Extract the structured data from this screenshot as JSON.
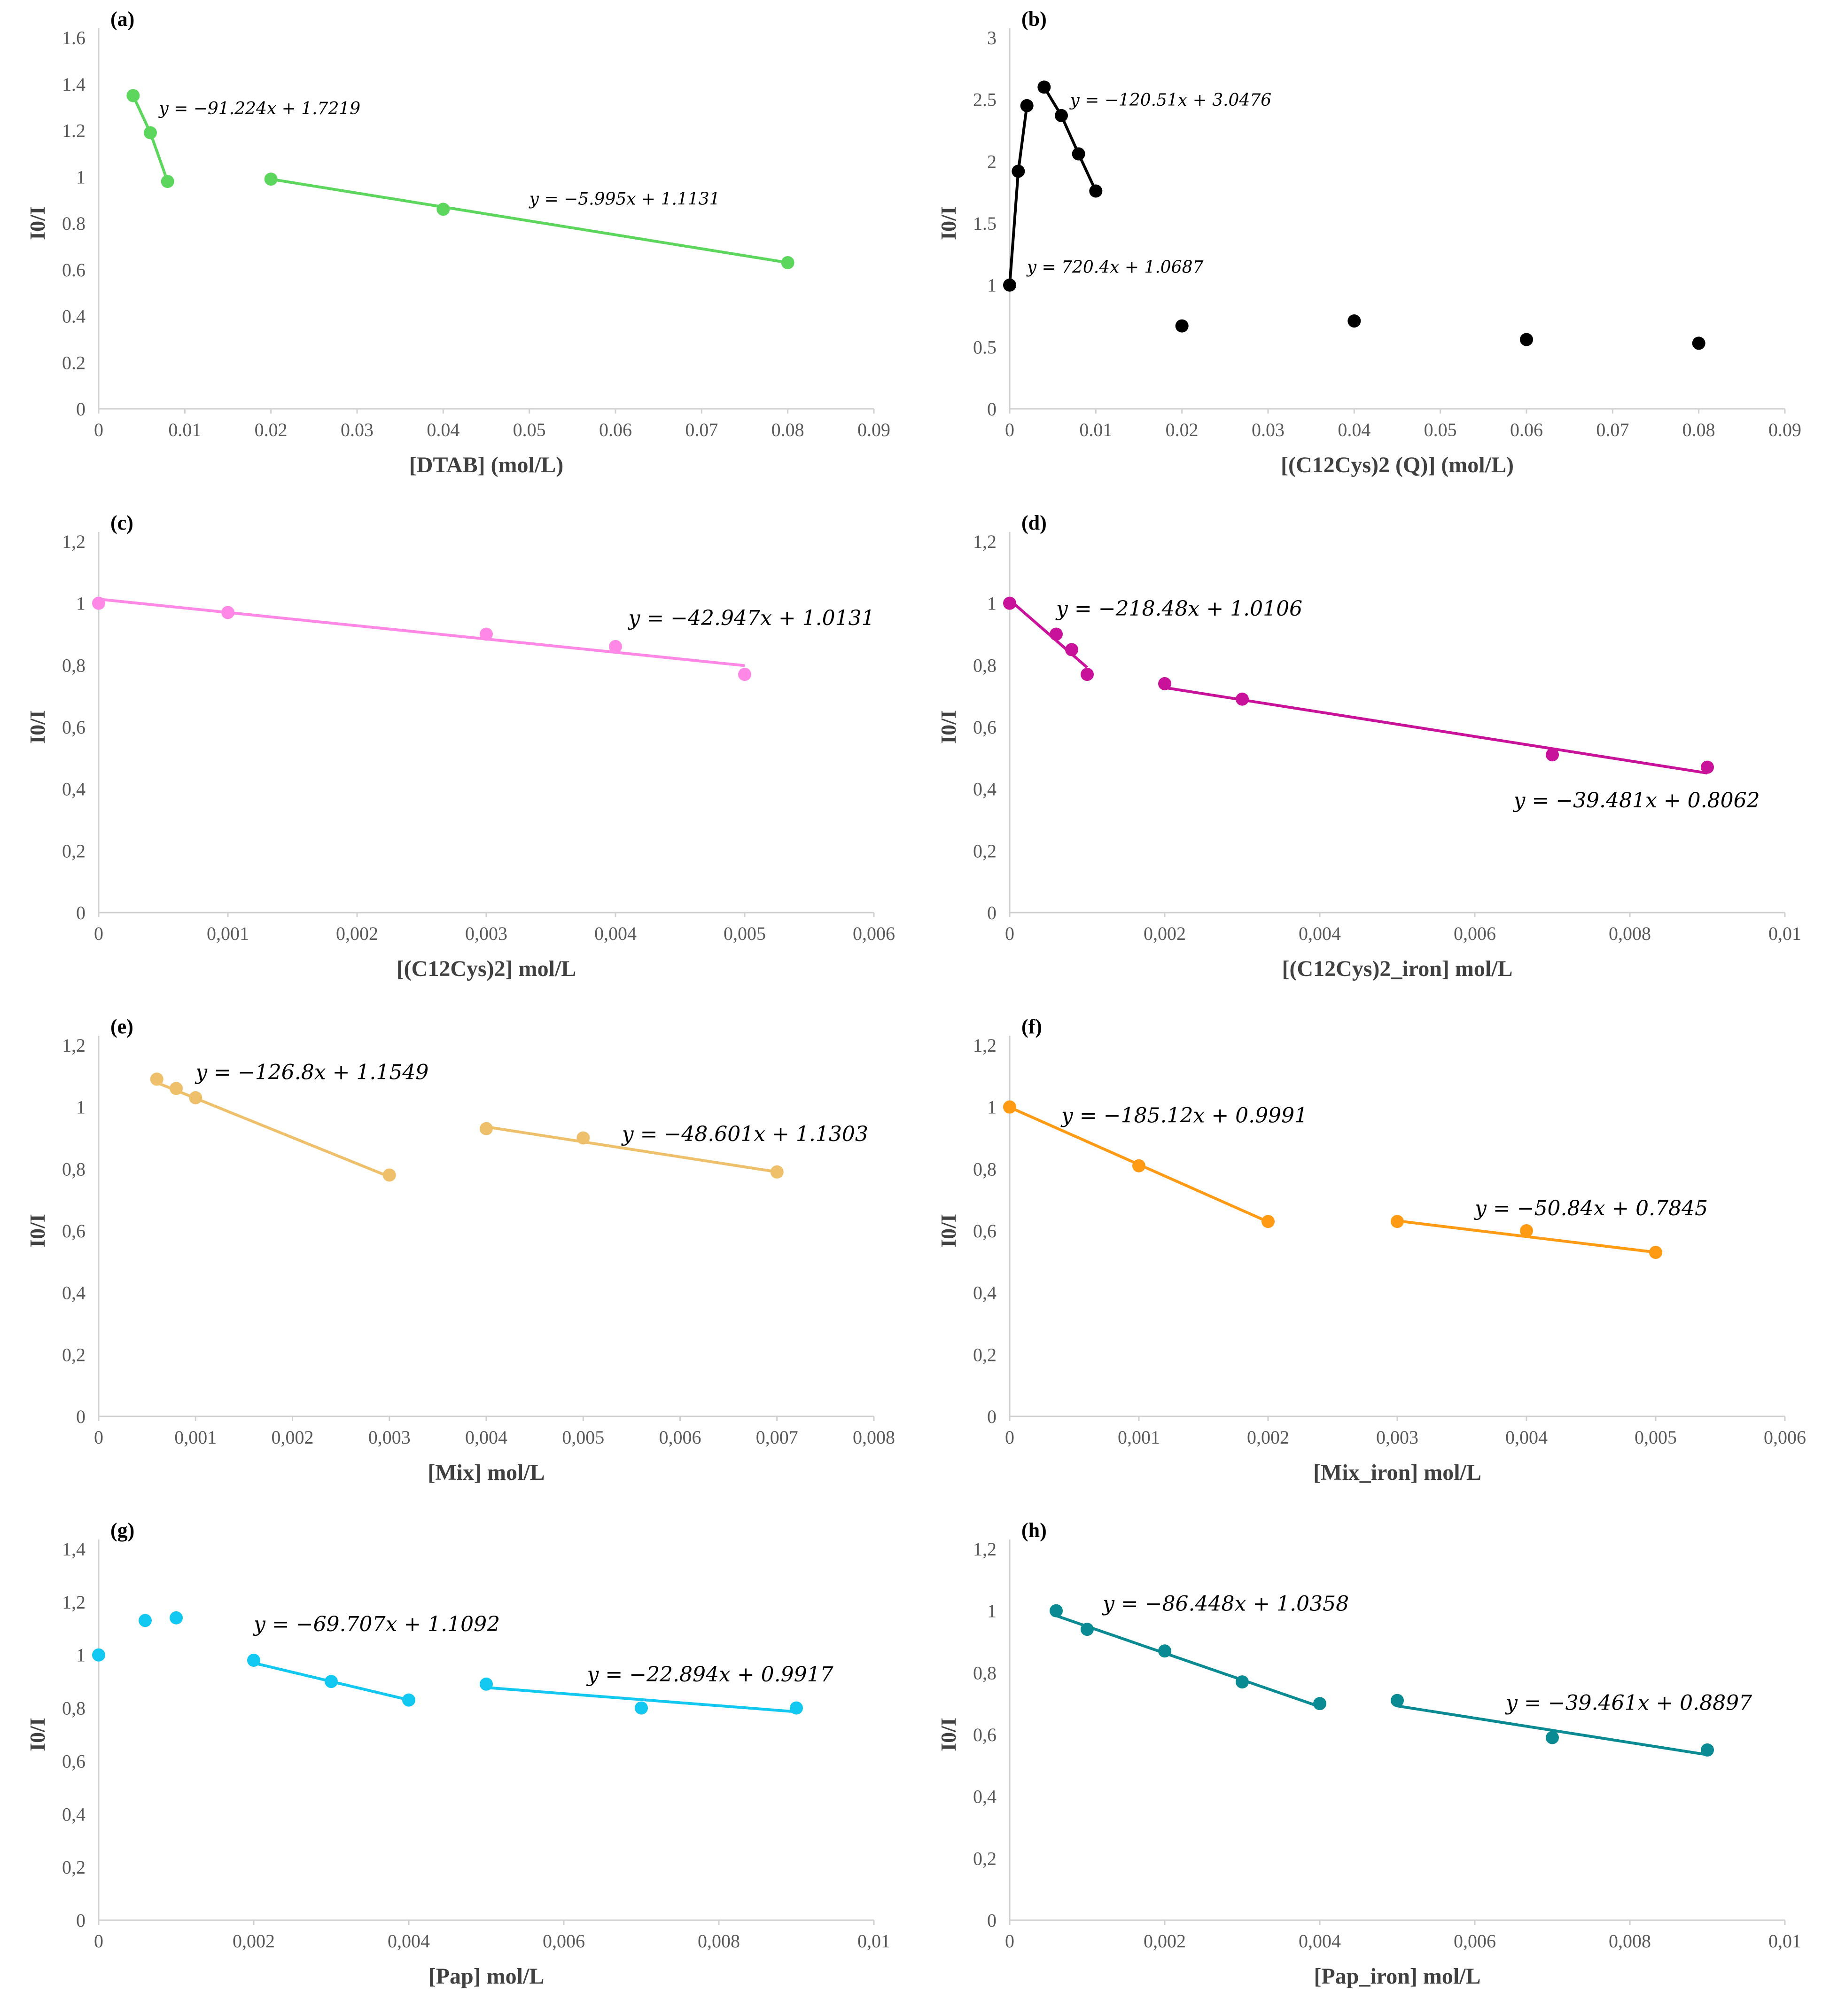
{
  "chart_data": [
    {
      "label": "(a)",
      "type": "scatter",
      "xlabel": "[DTAB] (mol/L)",
      "ylabel": "I0/I",
      "xlim": [
        0,
        0.09
      ],
      "xticks": [
        "0",
        "0.01",
        "0.02",
        "0.03",
        "0.04",
        "0.05",
        "0.06",
        "0.07",
        "0.08",
        "0.09"
      ],
      "ylim": [
        0,
        1.6
      ],
      "yticks": [
        "0",
        "0.2",
        "0.4",
        "0.6",
        "0.8",
        "1",
        "1.2",
        "1.4",
        "1.6"
      ],
      "color": "#5cd65c",
      "points": [
        [
          0.004,
          1.35
        ],
        [
          0.006,
          1.19
        ],
        [
          0.008,
          0.98
        ],
        [
          0.02,
          0.99
        ],
        [
          0.04,
          0.86
        ],
        [
          0.08,
          0.63
        ]
      ],
      "lines": [
        [
          [
            0.004,
            1.35
          ],
          [
            0.006,
            1.19
          ],
          [
            0.008,
            0.98
          ]
        ],
        [
          [
            0.02,
            0.99
          ],
          [
            0.08,
            0.63
          ]
        ]
      ],
      "equations": [
        {
          "text": "y = −91.224x + 1.7219",
          "at": [
            0.007,
            1.27
          ]
        },
        {
          "text": "y = −5.995x + 1.1131",
          "at": [
            0.05,
            0.88
          ]
        }
      ]
    },
    {
      "label": "(b)",
      "type": "scatter",
      "xlabel": "[(C12Cys)2 (Q)] (mol/L)",
      "ylabel": "I0/I",
      "xlim": [
        0,
        0.09
      ],
      "xticks": [
        "0",
        "0.01",
        "0.02",
        "0.03",
        "0.04",
        "0.05",
        "0.06",
        "0.07",
        "0.08",
        "0.09"
      ],
      "ylim": [
        0,
        3
      ],
      "yticks": [
        "0",
        "0.5",
        "1",
        "1.5",
        "2",
        "2.5",
        "3"
      ],
      "color": "#000000",
      "points": [
        [
          0,
          1
        ],
        [
          0.001,
          1.92
        ],
        [
          0.002,
          2.45
        ],
        [
          0.004,
          2.6
        ],
        [
          0.006,
          2.37
        ],
        [
          0.008,
          2.06
        ],
        [
          0.01,
          1.76
        ],
        [
          0.02,
          0.67
        ],
        [
          0.04,
          0.71
        ],
        [
          0.06,
          0.56
        ],
        [
          0.08,
          0.53
        ]
      ],
      "lines": [
        [
          [
            0,
            1
          ],
          [
            0.001,
            1.92
          ],
          [
            0.002,
            2.45
          ]
        ],
        [
          [
            0.004,
            2.6
          ],
          [
            0.006,
            2.37
          ],
          [
            0.008,
            2.06
          ],
          [
            0.01,
            1.76
          ]
        ]
      ],
      "equations": [
        {
          "text": "y = −120.51x + 3.0476",
          "at": [
            0.007,
            2.45
          ]
        },
        {
          "text": "y = 720.4x + 1.0687",
          "at": [
            0.002,
            1.1
          ]
        }
      ]
    },
    {
      "label": "(c)",
      "type": "scatter",
      "xlabel": "[(C12Cys)2] mol/L",
      "ylabel": "I0/I",
      "xlim": [
        0,
        0.006
      ],
      "xticks": [
        "0",
        "0,001",
        "0,002",
        "0,003",
        "0,004",
        "0,005",
        "0,006"
      ],
      "ylim": [
        0,
        1.2
      ],
      "yticks": [
        "0",
        "0,2",
        "0,4",
        "0,6",
        "0,8",
        "1",
        "1,2"
      ],
      "color": "#ff88e6",
      "points": [
        [
          0,
          1
        ],
        [
          0.001,
          0.97
        ],
        [
          0.003,
          0.9
        ],
        [
          0.004,
          0.86
        ],
        [
          0.005,
          0.77
        ]
      ],
      "lines": [
        [
          [
            0,
            1.0131
          ],
          [
            0.005,
            0.7984
          ]
        ]
      ],
      "equations": [
        {
          "text": "y = −42.947x + 1.0131",
          "at": [
            0.0041,
            0.93
          ]
        }
      ]
    },
    {
      "label": "(d)",
      "type": "scatter",
      "xlabel": "[(C12Cys)2_iron] mol/L",
      "ylabel": "I0/I",
      "xlim": [
        0,
        0.01
      ],
      "xticks": [
        "0",
        "0,002",
        "0,004",
        "0,006",
        "0,008",
        "0,01"
      ],
      "ylim": [
        0,
        1.2
      ],
      "yticks": [
        "0",
        "0,2",
        "0,4",
        "0,6",
        "0,8",
        "1",
        "1,2"
      ],
      "color": "#c8129a",
      "points": [
        [
          0,
          1
        ],
        [
          0.0006,
          0.9
        ],
        [
          0.0008,
          0.85
        ],
        [
          0.001,
          0.77
        ],
        [
          0.002,
          0.74
        ],
        [
          0.003,
          0.69
        ],
        [
          0.007,
          0.51
        ],
        [
          0.009,
          0.47
        ]
      ],
      "lines": [
        [
          [
            0,
            1.0106
          ],
          [
            0.001,
            0.7921
          ]
        ],
        [
          [
            0.002,
            0.7272
          ],
          [
            0.009,
            0.4509
          ]
        ]
      ],
      "equations": [
        {
          "text": "y = −218.48x + 1.0106",
          "at": [
            0.0006,
            0.96
          ]
        },
        {
          "text": "y = −39.481x + 0.8062",
          "at": [
            0.0065,
            0.34
          ]
        }
      ]
    },
    {
      "label": "(e)",
      "type": "scatter",
      "xlabel": "[Mix] mol/L",
      "ylabel": "I0/I",
      "xlim": [
        0,
        0.008
      ],
      "xticks": [
        "0",
        "0,001",
        "0,002",
        "0,003",
        "0,004",
        "0,005",
        "0,006",
        "0,007",
        "0,008"
      ],
      "ylim": [
        0,
        1.2
      ],
      "yticks": [
        "0",
        "0,2",
        "0,4",
        "0,6",
        "0,8",
        "1",
        "1,2"
      ],
      "color": "#efc06b",
      "points": [
        [
          0.0006,
          1.09
        ],
        [
          0.0008,
          1.06
        ],
        [
          0.001,
          1.03
        ],
        [
          0.003,
          0.78
        ],
        [
          0.004,
          0.93
        ],
        [
          0.005,
          0.9
        ],
        [
          0.007,
          0.79
        ]
      ],
      "lines": [
        [
          [
            0.0006,
            1.0788
          ],
          [
            0.003,
            0.7745
          ]
        ],
        [
          [
            0.004,
            0.9359
          ],
          [
            0.007,
            0.7901
          ]
        ]
      ],
      "equations": [
        {
          "text": "y = −126.8x + 1.1549",
          "at": [
            0.001,
            1.09
          ]
        },
        {
          "text": "y = −48.601x + 1.1303",
          "at": [
            0.0054,
            0.89
          ]
        }
      ]
    },
    {
      "label": "(f)",
      "type": "scatter",
      "xlabel": "[Mix_iron] mol/L",
      "ylabel": "I0/I",
      "xlim": [
        0,
        0.006
      ],
      "xticks": [
        "0",
        "0,001",
        "0,002",
        "0,003",
        "0,004",
        "0,005",
        "0,006"
      ],
      "ylim": [
        0,
        1.2
      ],
      "yticks": [
        "0",
        "0,2",
        "0,4",
        "0,6",
        "0,8",
        "1",
        "1,2"
      ],
      "color": "#ff9a14",
      "points": [
        [
          0,
          1
        ],
        [
          0.001,
          0.81
        ],
        [
          0.002,
          0.63
        ],
        [
          0.003,
          0.63
        ],
        [
          0.004,
          0.6
        ],
        [
          0.005,
          0.53
        ]
      ],
      "lines": [
        [
          [
            0,
            0.9991
          ],
          [
            0.002,
            0.6289
          ]
        ],
        [
          [
            0.003,
            0.632
          ],
          [
            0.005,
            0.5303
          ]
        ]
      ],
      "equations": [
        {
          "text": "y = −185.12x + 0.9991",
          "at": [
            0.0004,
            0.95
          ]
        },
        {
          "text": "y = −50.84x + 0.7845",
          "at": [
            0.0036,
            0.65
          ]
        }
      ]
    },
    {
      "label": "(g)",
      "type": "scatter",
      "xlabel": "[Pap] mol/L",
      "ylabel": "I0/I",
      "xlim": [
        0,
        0.01
      ],
      "xticks": [
        "0",
        "0,002",
        "0,004",
        "0,006",
        "0,008",
        "0,01"
      ],
      "ylim": [
        0,
        1.4
      ],
      "yticks": [
        "0",
        "0,2",
        "0,4",
        "0,6",
        "0,8",
        "1",
        "1,2",
        "1,4"
      ],
      "color": "#12c8f0",
      "points": [
        [
          0,
          1
        ],
        [
          0.0006,
          1.13
        ],
        [
          0.001,
          1.14
        ],
        [
          0.002,
          0.98
        ],
        [
          0.003,
          0.9
        ],
        [
          0.004,
          0.83
        ],
        [
          0.005,
          0.89
        ],
        [
          0.007,
          0.8
        ],
        [
          0.009,
          0.8
        ]
      ],
      "lines": [
        [
          [
            0.002,
            0.9698
          ],
          [
            0.004,
            0.8304
          ]
        ],
        [
          [
            0.005,
            0.8772
          ],
          [
            0.009,
            0.7857
          ]
        ]
      ],
      "equations": [
        {
          "text": "y = −69.707x + 1.1092",
          "at": [
            0.002,
            1.09
          ]
        },
        {
          "text": "y = −22.894x + 0.9917",
          "at": [
            0.0063,
            0.9
          ]
        }
      ]
    },
    {
      "label": "(h)",
      "type": "scatter",
      "xlabel": "[Pap_iron] mol/L",
      "ylabel": "I0/I",
      "xlim": [
        0,
        0.01
      ],
      "xticks": [
        "0",
        "0,002",
        "0,004",
        "0,006",
        "0,008",
        "0,01"
      ],
      "ylim": [
        0,
        1.2
      ],
      "yticks": [
        "0",
        "0,2",
        "0,4",
        "0,6",
        "0,8",
        "1",
        "1,2"
      ],
      "color": "#0a8a92",
      "points": [
        [
          0.0006,
          1
        ],
        [
          0.001,
          0.94
        ],
        [
          0.002,
          0.87
        ],
        [
          0.003,
          0.77
        ],
        [
          0.004,
          0.7
        ],
        [
          0.005,
          0.71
        ],
        [
          0.007,
          0.59
        ],
        [
          0.009,
          0.55
        ]
      ],
      "lines": [
        [
          [
            0.0006,
            0.984
          ],
          [
            0.004,
            0.69
          ]
        ],
        [
          [
            0.005,
            0.6924
          ],
          [
            0.009,
            0.5346
          ]
        ]
      ],
      "equations": [
        {
          "text": "y = −86.448x + 1.0358",
          "at": [
            0.0012,
            1.0
          ]
        },
        {
          "text": "y = −39.461x + 0.8897",
          "at": [
            0.0064,
            0.68
          ]
        }
      ]
    }
  ]
}
